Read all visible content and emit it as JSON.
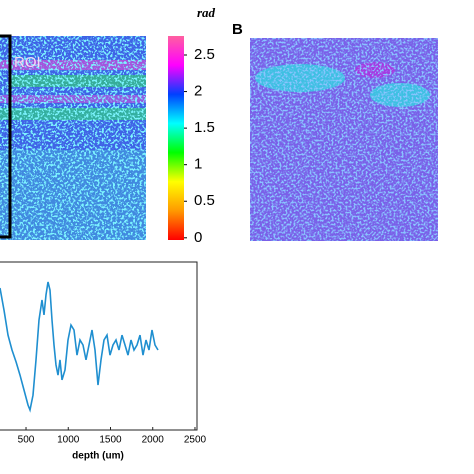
{
  "panel_label": "B",
  "chart_data": [
    {
      "type": "colorbar",
      "title": "rad",
      "annotation": "ROI",
      "ylim": [
        -0.03,
        2.76
      ],
      "yticks": [
        0,
        0.5,
        1,
        1.5,
        2,
        2.5
      ],
      "colors": [
        "#ff0000",
        "#ff9900",
        "#ffff00",
        "#00ff00",
        "#00ffff",
        "#0040ff",
        "#ff00ff",
        "#ff60a0"
      ]
    },
    {
      "type": "line",
      "xlabel": "depth (um)",
      "xlim": [
        192,
        2524
      ],
      "xticks": [
        500,
        1000,
        1500,
        2000,
        2500
      ],
      "ylim": [
        0,
        100
      ],
      "x": [
        192,
        240,
        287,
        334,
        382,
        429,
        476,
        524,
        547,
        583,
        618,
        654,
        689,
        713,
        737,
        760,
        784,
        808,
        831,
        855,
        879,
        902,
        926,
        962,
        997,
        1033,
        1068,
        1104,
        1139,
        1175,
        1210,
        1246,
        1281,
        1317,
        1352,
        1388,
        1423,
        1459,
        1494,
        1530,
        1565,
        1601,
        1636,
        1672,
        1707,
        1743,
        1778,
        1814,
        1849,
        1885,
        1920,
        1956,
        1991,
        2027,
        2062
      ],
      "series": [
        {
          "color": "#1f8fd0",
          "values": [
            84.5,
            71,
            56.5,
            47.6,
            40.5,
            32.7,
            23.8,
            14.9,
            11.9,
            20.8,
            41.7,
            65.5,
            77.4,
            68.5,
            80.4,
            88.1,
            83.3,
            65.5,
            50.6,
            38.7,
            32.7,
            41.7,
            29.8,
            35.7,
            53.6,
            62.5,
            59.5,
            44.6,
            53.6,
            50.6,
            41.7,
            50.6,
            59.5,
            47.6,
            26.8,
            41.7,
            53.6,
            56.5,
            44.6,
            50.6,
            53.6,
            47.6,
            56.5,
            50.6,
            44.6,
            53.6,
            47.6,
            50.6,
            56.5,
            44.6,
            53.6,
            47.6,
            59.5,
            50.6,
            47.6
          ]
        }
      ]
    }
  ]
}
